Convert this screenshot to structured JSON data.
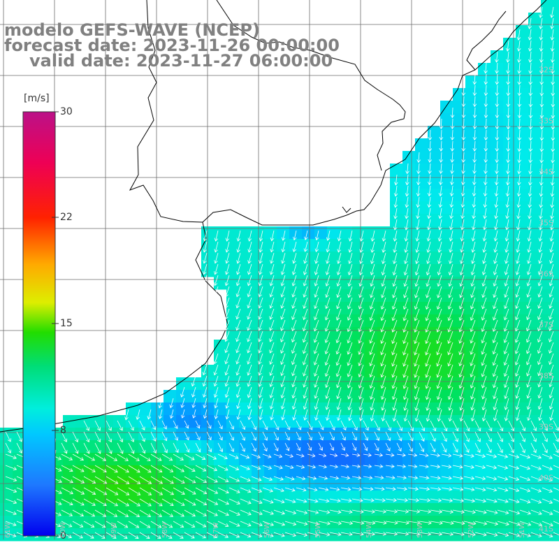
{
  "title": {
    "model": "modelo GEFS-WAVE (NCEP)",
    "forecast": "forecast date: 2023-11-26 00:00:00",
    "valid": "valid date: 2023-11-27 06:00:00"
  },
  "colorbar": {
    "unit": "[m/s]",
    "ticks": [
      "30",
      "22",
      "15",
      "8",
      "0"
    ],
    "colors": [
      "#0000ff",
      "#1e90ff",
      "#00eeee",
      "#00dd66",
      "#22dd00",
      "#ffff00",
      "#ff9900",
      "#ff0000",
      "#dd1177",
      "#bb1188"
    ]
  },
  "map": {
    "land_color": "#ffffff",
    "coast_color": "#000000",
    "grid_color": "#6e6e6e",
    "arrow_color": "#ffffff",
    "lat_labels": [
      "32S",
      "33S",
      "34S",
      "35S",
      "36S",
      "37S",
      "38S",
      "39S",
      "40S",
      "41S"
    ],
    "lon_labels": [
      "61W",
      "60W",
      "59W",
      "58W",
      "57W",
      "56W",
      "55W",
      "54W",
      "53W",
      "52W",
      "51W"
    ],
    "wind_field_note": ""
  }
}
